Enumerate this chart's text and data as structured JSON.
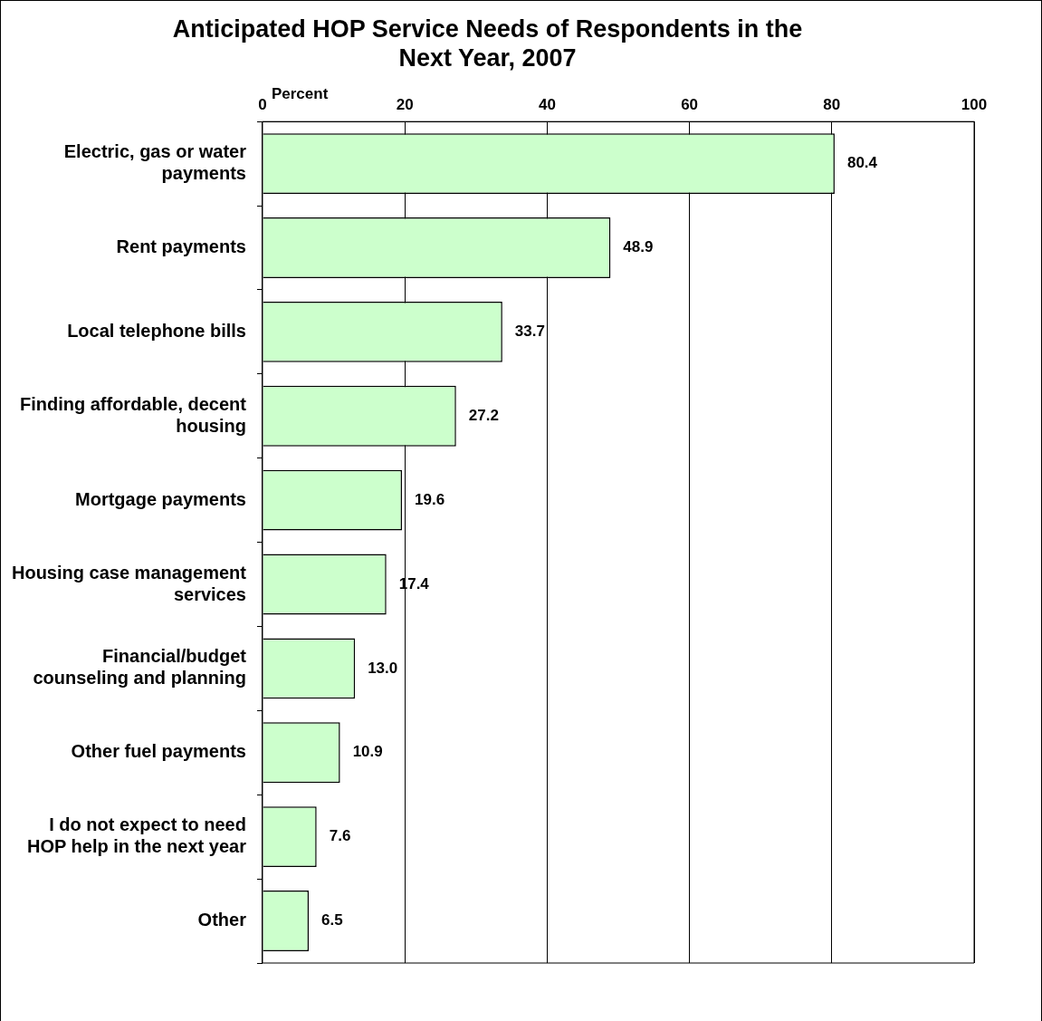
{
  "chart_data": {
    "type": "bar",
    "orientation": "horizontal",
    "title": "Anticipated HOP Service Needs of Respondents in the Next Year, 2007",
    "xlabel": "Percent",
    "categories": [
      "Electric, gas or water payments",
      "Rent payments",
      "Local telephone bills",
      "Finding affordable, decent housing",
      "Mortgage payments",
      "Housing case management services",
      "Financial/budget counseling and planning",
      "Other fuel payments",
      "I do not expect to need HOP help in the next year",
      "Other"
    ],
    "values": [
      80.4,
      48.9,
      33.7,
      27.2,
      19.6,
      17.4,
      13.0,
      10.9,
      7.6,
      6.5
    ],
    "value_labels": [
      "80.4",
      "48.9",
      "33.7",
      "27.2",
      "19.6",
      "17.4",
      "13.0",
      "10.9",
      "7.6",
      "6.5"
    ],
    "color": "#ccffcc",
    "xlim": [
      0,
      100
    ],
    "xticks": [
      0,
      20,
      40,
      60,
      80,
      100
    ],
    "grid": "x",
    "legend": false
  }
}
